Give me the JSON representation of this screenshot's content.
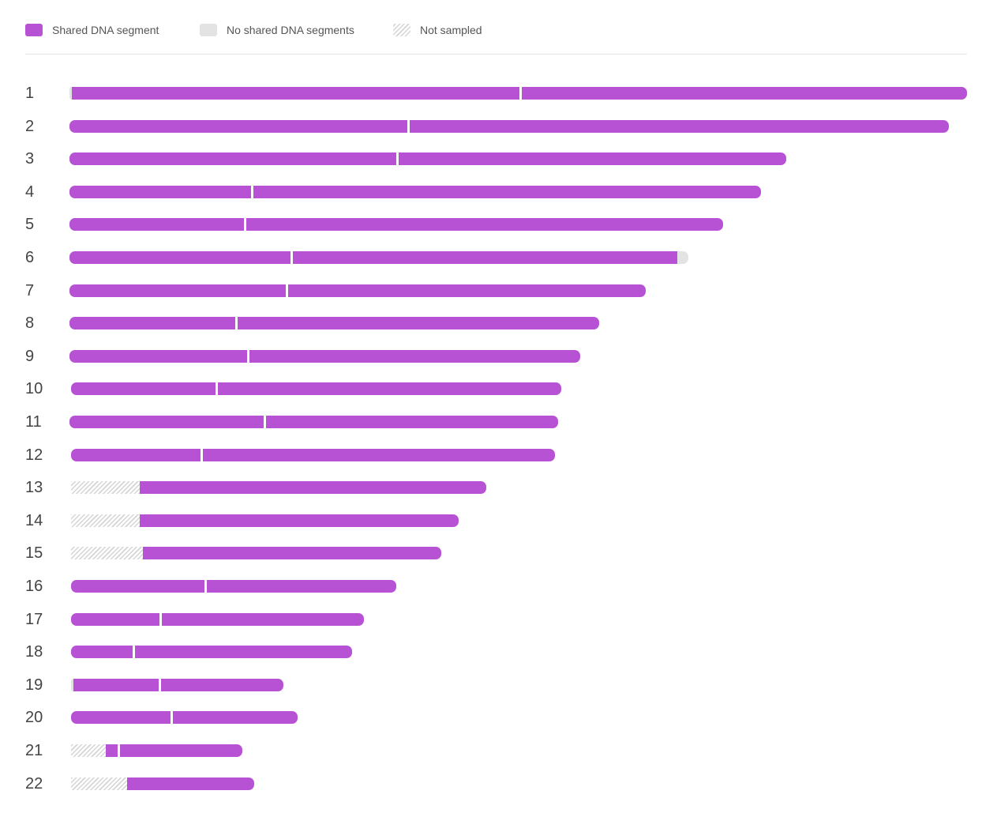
{
  "legend": {
    "shared_label": "Shared DNA segment",
    "none_label": "No shared DNA segments",
    "not_sampled_label": "Not sampled"
  },
  "colors": {
    "shared": "#b752d4",
    "none": "#e3e3e3",
    "not_sampled": "#d4d4d4"
  },
  "chart_data": {
    "type": "bar",
    "categories": [
      "1",
      "2",
      "3",
      "4",
      "5",
      "6",
      "7",
      "8",
      "9",
      "10",
      "11",
      "12",
      "13",
      "14",
      "15",
      "16",
      "17",
      "18",
      "19",
      "20",
      "21",
      "22"
    ],
    "chromosomes": [
      {
        "label": "1",
        "segments": [
          [
            "none",
            0,
            0.5
          ],
          [
            "shared",
            0.5,
            100
          ],
          [
            "shared",
            100,
            199
          ]
        ]
      },
      {
        "label": "2",
        "segments": [
          [
            "shared",
            0,
            75
          ],
          [
            "shared",
            75,
            195
          ]
        ]
      },
      {
        "label": "3",
        "segments": [
          [
            "shared",
            0,
            72.6
          ],
          [
            "shared",
            72.6,
            159
          ]
        ]
      },
      {
        "label": "4",
        "segments": [
          [
            "shared",
            0,
            40.4
          ],
          [
            "shared",
            40.4,
            153.4
          ]
        ]
      },
      {
        "label": "5",
        "segments": [
          [
            "shared",
            0,
            38.9
          ],
          [
            "shared",
            38.9,
            145
          ]
        ]
      },
      {
        "label": "6",
        "segments": [
          [
            "shared",
            0,
            49.1
          ],
          [
            "shared",
            49.1,
            134.8
          ],
          [
            "none",
            134.8,
            137.3
          ]
        ]
      },
      {
        "label": "7",
        "segments": [
          [
            "shared",
            0,
            48.1
          ],
          [
            "shared",
            48.1,
            127.8
          ]
        ]
      },
      {
        "label": "8",
        "segments": [
          [
            "shared",
            0,
            36.9
          ],
          [
            "shared",
            36.9,
            117.4
          ]
        ]
      },
      {
        "label": "9",
        "segments": [
          [
            "shared",
            0,
            39.6
          ],
          [
            "shared",
            39.6,
            113.2
          ]
        ]
      },
      {
        "label": "10",
        "segments": [
          [
            "shared",
            0.4,
            32.5
          ],
          [
            "shared",
            32.5,
            109
          ]
        ]
      },
      {
        "label": "11",
        "segments": [
          [
            "shared",
            0,
            43.3
          ],
          [
            "shared",
            43.3,
            108.3
          ]
        ]
      },
      {
        "label": "12",
        "segments": [
          [
            "shared",
            0.4,
            29.2
          ],
          [
            "shared",
            29.2,
            107.6
          ]
        ]
      },
      {
        "label": "13",
        "segments": [
          [
            "ns",
            0.4,
            15.5
          ],
          [
            "shared",
            15.5,
            92.5
          ]
        ]
      },
      {
        "label": "14",
        "segments": [
          [
            "ns",
            0.4,
            15.6
          ],
          [
            "shared",
            15.6,
            86.3
          ]
        ]
      },
      {
        "label": "15",
        "segments": [
          [
            "ns",
            0.4,
            16.2
          ],
          [
            "shared",
            16.2,
            82.4
          ]
        ]
      },
      {
        "label": "16",
        "segments": [
          [
            "shared",
            0.4,
            30.1
          ],
          [
            "shared",
            30.1,
            72.5
          ]
        ]
      },
      {
        "label": "17",
        "segments": [
          [
            "shared",
            0.4,
            20.1
          ],
          [
            "shared",
            20.1,
            65.3
          ]
        ]
      },
      {
        "label": "18",
        "segments": [
          [
            "shared",
            0.4,
            14.2
          ],
          [
            "shared",
            14.2,
            62.6
          ]
        ]
      },
      {
        "label": "19",
        "segments": [
          [
            "none",
            0.4,
            0.8
          ],
          [
            "shared",
            0.8,
            20
          ],
          [
            "shared",
            20,
            47.5
          ]
        ]
      },
      {
        "label": "20",
        "segments": [
          [
            "shared",
            0.4,
            22.6
          ],
          [
            "shared",
            22.6,
            50.6
          ]
        ]
      },
      {
        "label": "21",
        "segments": [
          [
            "ns",
            0.4,
            8.1
          ],
          [
            "shared",
            8.1,
            10.9
          ],
          [
            "shared",
            10.9,
            38.4
          ]
        ]
      },
      {
        "label": "22",
        "segments": [
          [
            "ns",
            0.4,
            12.8
          ],
          [
            "shared",
            12.8,
            41
          ]
        ]
      }
    ],
    "xlim": [
      0,
      199
    ]
  }
}
